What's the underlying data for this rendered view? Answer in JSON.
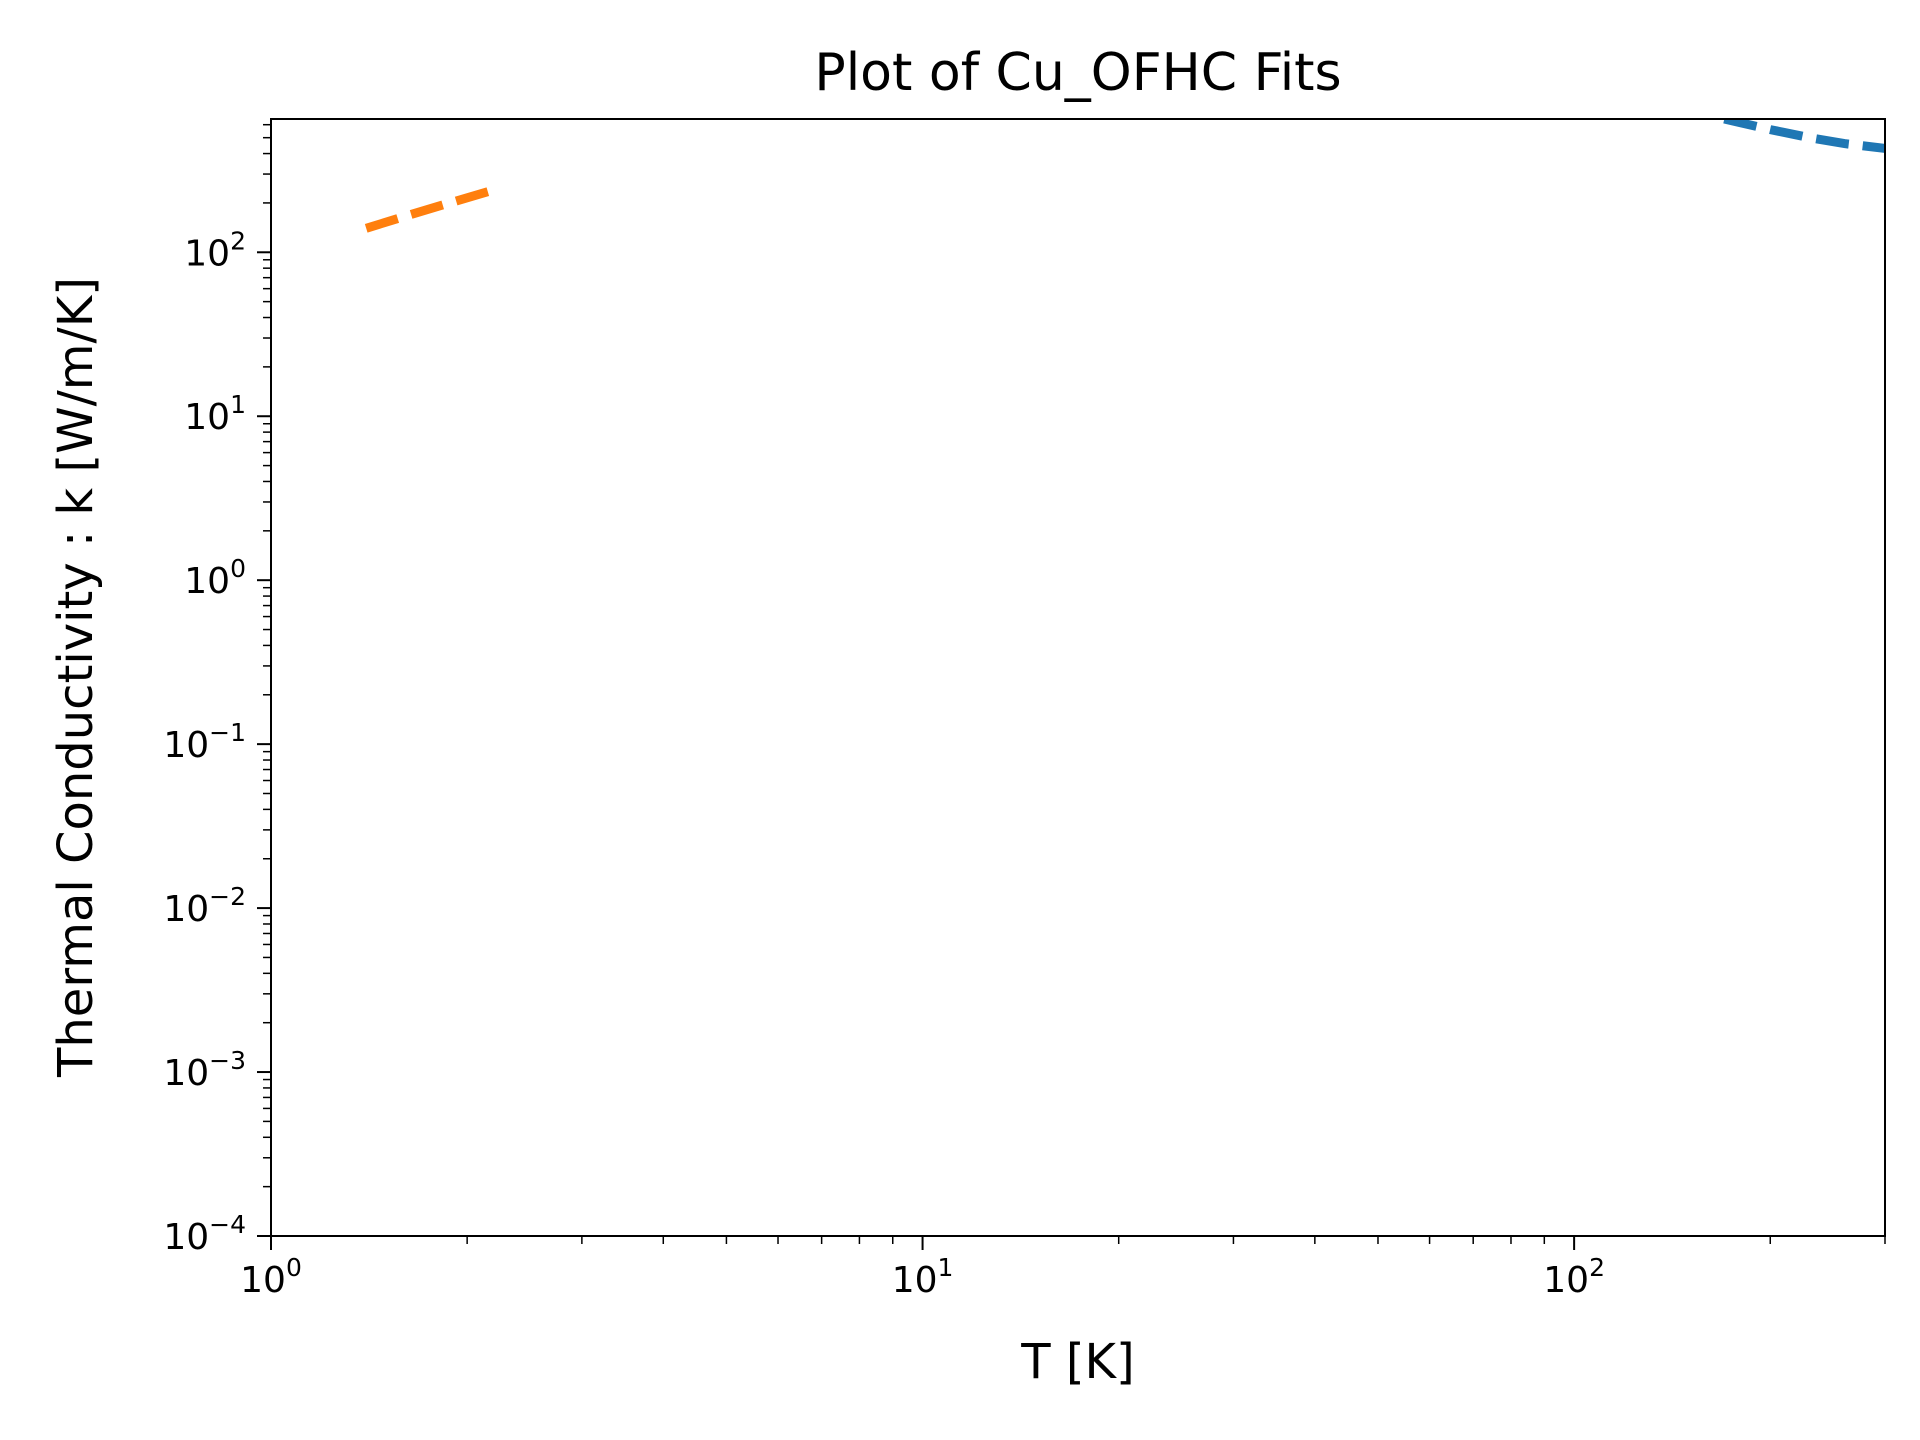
{
  "chart_data": {
    "type": "line",
    "title": "Plot of Cu_OFHC Fits",
    "xlabel": "T [K]",
    "ylabel": "Thermal Conductivity : k [W/m/K]",
    "xscale": "log",
    "yscale": "log",
    "xlim": [
      1,
      300
    ],
    "ylim": [
      0.0001,
      650
    ],
    "grid": false,
    "x_ticks": [
      {
        "base": "10",
        "exp": "0"
      },
      {
        "base": "10",
        "exp": "1"
      },
      {
        "base": "10",
        "exp": "2"
      }
    ],
    "y_ticks": [
      {
        "base": "10",
        "exp": "−4"
      },
      {
        "base": "10",
        "exp": "−3"
      },
      {
        "base": "10",
        "exp": "−2"
      },
      {
        "base": "10",
        "exp": "−1"
      },
      {
        "base": "10",
        "exp": "0"
      },
      {
        "base": "10",
        "exp": "1"
      },
      {
        "base": "10",
        "exp": "2"
      }
    ],
    "series": [
      {
        "color": "#1f77b4",
        "linestyle": "dashed",
        "x": [
          170,
          200,
          230,
          260,
          300
        ],
        "y": [
          650,
          560,
          500,
          460,
          430
        ]
      },
      {
        "color": "#ff7f0e",
        "linestyle": "dashed",
        "x": [
          1.4,
          1.6,
          1.8,
          2.0,
          2.2
        ],
        "y": [
          140,
          165,
          190,
          215,
          240
        ]
      }
    ]
  }
}
